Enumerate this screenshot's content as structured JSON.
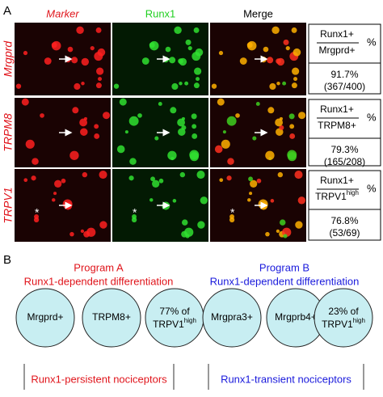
{
  "panel_a": {
    "label": "A",
    "columns": [
      "Marker",
      "Runx1",
      "Merge"
    ],
    "rows": [
      {
        "marker": "Mrgprd",
        "numerator": "Runx1+",
        "unit": "%",
        "denominator": "Mrgprd+",
        "percent": "91.7%",
        "counts": "(367/400)"
      },
      {
        "marker": "TRPM8",
        "numerator": "Runx1+",
        "unit": "%",
        "denominator": "TRPM8+",
        "percent": "79.3%",
        "counts": "(165/208)"
      },
      {
        "marker": "TRPV1",
        "numerator": "Runx1+",
        "unit": "%",
        "denominator": "TRPV1",
        "denominator_sup": "high",
        "percent": "76.8%",
        "counts": "(53/69)",
        "annotation_symbol": "*"
      }
    ]
  },
  "panel_b": {
    "label": "B",
    "programs": [
      {
        "title": "Program A",
        "subtitle": "Runx1-dependent differentiation",
        "footer": "Runx1-persistent nociceptors",
        "circles": [
          {
            "text": "Mrgprd+"
          },
          {
            "text": "TRPM8+"
          },
          {
            "text": "77% of",
            "text2": "TRPV1",
            "sup": "high"
          }
        ]
      },
      {
        "title": "Program B",
        "subtitle": "Runx1-dependent differentiation",
        "footer": "Runx1-transient nociceptors",
        "circles": [
          {
            "text": "Mrgpra3+"
          },
          {
            "text": "Mrgprb4+"
          },
          {
            "text": "23% of",
            "text2": "TRPV1",
            "sup": "high"
          }
        ]
      }
    ]
  }
}
